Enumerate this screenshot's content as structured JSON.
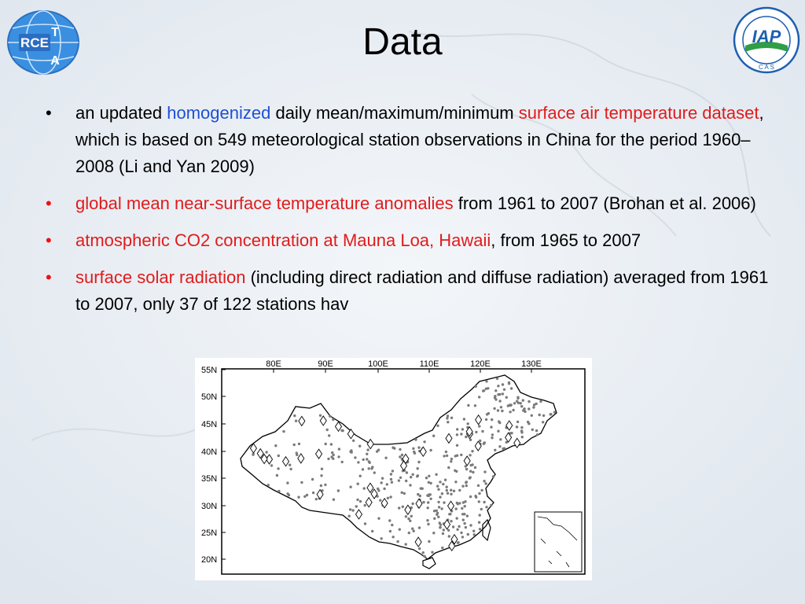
{
  "slide": {
    "title": "Data",
    "bullets": [
      {
        "segments": [
          {
            "text": "an updated ",
            "style": "plain"
          },
          {
            "text": "homogenized",
            "style": "blue"
          },
          {
            "text": " daily mean/maximum/minimum ",
            "style": "plain"
          },
          {
            "text": "surface air temperature dataset",
            "style": "red"
          },
          {
            "text": ", which is based on 549 meteorological station observations in China for the period 1960–2008 (Li and Yan 2009)",
            "style": "plain"
          }
        ]
      },
      {
        "segments": [
          {
            "text": "global mean near-surface temperature anomalies",
            "style": "red"
          },
          {
            "text": " from 1961 to 2007 (Brohan et al. 2006)",
            "style": "plain"
          }
        ]
      },
      {
        "segments": [
          {
            "text": "atmospheric CO2 concentration at Mauna Loa, Hawaii",
            "style": "red"
          },
          {
            "text": ", from 1965 to 2007",
            "style": "plain"
          }
        ]
      },
      {
        "segments": [
          {
            "text": "surface solar radiation",
            "style": "red"
          },
          {
            "text": " (including direct radiation and diffuse radiation) averaged from 1961 to 2007, only 37 of 122 stations hav",
            "style": "plain"
          }
        ]
      }
    ]
  },
  "logos": {
    "left": {
      "text": "RCE TEA",
      "icon": "rcetea-globe-logo"
    },
    "right": {
      "text": "IAP",
      "ring_text": "C A S",
      "icon": "iap-cas-seal-logo"
    }
  },
  "map": {
    "lon_labels": [
      "80E",
      "90E",
      "100E",
      "110E",
      "120E",
      "130E"
    ],
    "lat_labels": [
      "55N",
      "50N",
      "45N",
      "40N",
      "35N",
      "30N",
      "25N",
      "20N"
    ],
    "lon_range": [
      73,
      136
    ],
    "lat_range": [
      18,
      55
    ],
    "station_marker": "dot",
    "radiation_station_marker": "diamond",
    "radiation_station_count": 37
  },
  "colors": {
    "blue_text": "#1f4fd6",
    "red_text": "#e11b1b",
    "station_dot": "#7a7a7a",
    "background": "#e9eef4"
  }
}
